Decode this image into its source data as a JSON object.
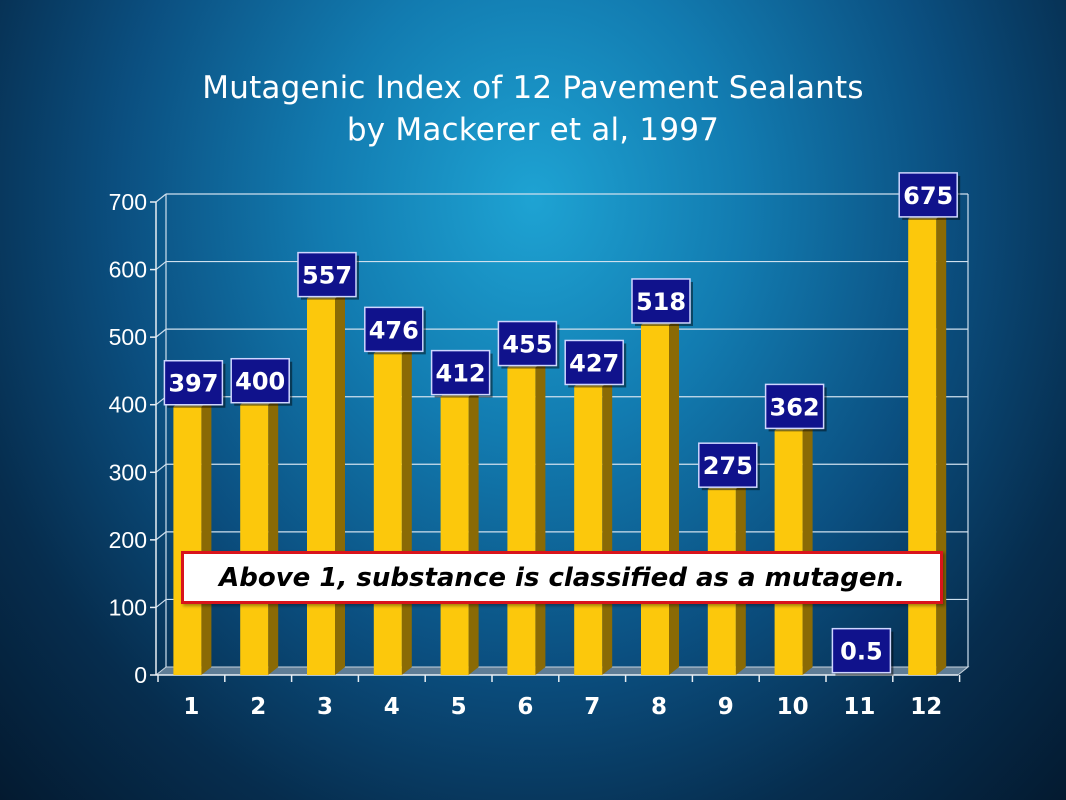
{
  "chart_data": {
    "type": "bar",
    "title": "Mutagenic Index of 12 Pavement Sealants",
    "subtitle": "by Mackerer et al, 1997",
    "categories": [
      "1",
      "2",
      "3",
      "4",
      "5",
      "6",
      "7",
      "8",
      "9",
      "10",
      "11",
      "12"
    ],
    "values": [
      397,
      400,
      557,
      476,
      412,
      455,
      427,
      518,
      275,
      362,
      0.5,
      675
    ],
    "data_labels": [
      "397",
      "400",
      "557",
      "476",
      "412",
      "455",
      "427",
      "518",
      "275",
      "362",
      "0.5",
      "675"
    ],
    "ylim": [
      0,
      700
    ],
    "yticks": [
      0,
      100,
      200,
      300,
      400,
      500,
      600,
      700
    ],
    "grid": true,
    "annotation": "Above 1, substance is classified as a mutagen.",
    "colors": {
      "bar_front": "#fcc80c",
      "bar_side": "#8a6a05",
      "bar_top": "#ffe066",
      "label_bg": "#10128c",
      "note_border": "#d9141b"
    }
  }
}
